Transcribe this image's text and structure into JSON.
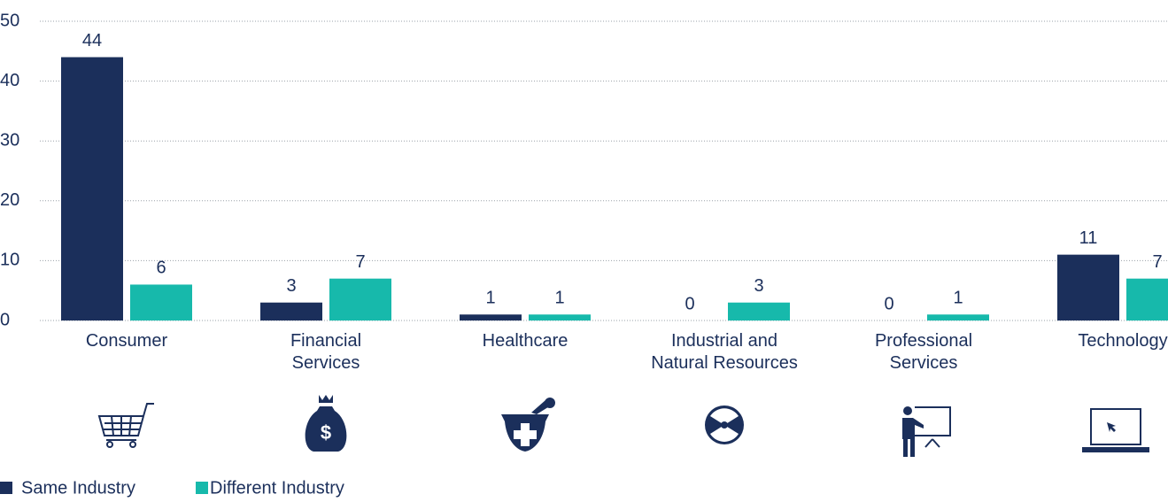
{
  "chart_data": {
    "type": "bar",
    "categories": [
      [
        "Consumer"
      ],
      [
        "Financial",
        "Services"
      ],
      [
        "Healthcare"
      ],
      [
        "Industrial and",
        "Natural Resources"
      ],
      [
        "Professional",
        "Services"
      ],
      [
        "Technology"
      ]
    ],
    "series": [
      {
        "name": "Same Industry",
        "color": "#1b2f5b",
        "values": [
          44,
          3,
          1,
          0,
          0,
          11
        ]
      },
      {
        "name": "Different Industry",
        "color": "#17b9ab",
        "values": [
          6,
          7,
          1,
          3,
          1,
          7
        ]
      }
    ],
    "ylim": [
      0,
      50
    ],
    "yticks": [
      0,
      10,
      20,
      30,
      40,
      50
    ],
    "grid": true,
    "legend": "bottom-left"
  }
}
